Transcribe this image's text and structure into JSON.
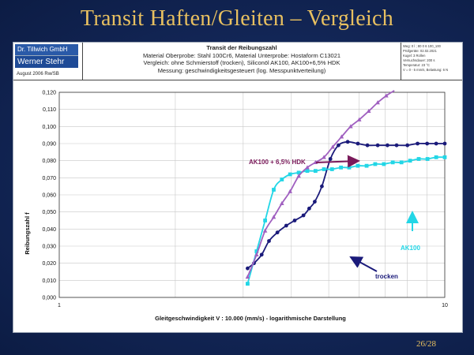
{
  "slide": {
    "title": "Transit Haften/Gleiten – Vergleich",
    "page": "26/28"
  },
  "header": {
    "logo_line1": "Dr. Tillwich GmbH",
    "logo_line2": "Werner Stehr",
    "date": "August 2006 Rw/SB",
    "title": "Transit der Reibungszahl",
    "line1": "Material Oberprobe: Stahl 100Cr6, Material Unterprobe: Hostaform C13021",
    "line2": "Vergleich: ohne Schmierstoff (trocken), Siliconöl AK100, AK100+6,5% HDK",
    "line3": "Messung: geschwindigkeitsgesteuert (log. Messpunktverteilung)",
    "right_lines": [
      "Weg: 0 l ; 80 0 6 100_100",
      "Prüfgeräte: 02.02.2021",
      "Kugel: 3 Rollen",
      "Versuchsdauer: 200 s",
      "Temperatur: 23 °C",
      "V = 0 - 5 mm/s, Belastung: 6 N"
    ]
  },
  "chart_data": {
    "type": "line",
    "xscale": "log",
    "xlim": [
      1,
      10
    ],
    "ylim": [
      0,
      0.12
    ],
    "yticks": [
      "0,000",
      "0,010",
      "0,020",
      "0,030",
      "0,040",
      "0,050",
      "0,060",
      "0,070",
      "0,080",
      "0,090",
      "0,100",
      "0,110",
      "0,120"
    ],
    "xticks": [
      "1",
      "10"
    ],
    "xlabel": "Gleitgeschwindigkeit V : 10.000 (mm/s) - logarithmische Darstellung",
    "ylabel": "Reibungszahl f",
    "grid": true,
    "series": [
      {
        "name": "trocken",
        "color": "#1a1a7a",
        "marker": "circle",
        "x": [
          3.08,
          3.2,
          3.35,
          3.5,
          3.68,
          3.88,
          4.08,
          4.3,
          4.45,
          4.6,
          4.8,
          5.05,
          5.3,
          5.6,
          5.95,
          6.3,
          6.7,
          7.1,
          7.5,
          8.0,
          8.5,
          9.0,
          9.5,
          10.0
        ],
        "y": [
          0.017,
          0.02,
          0.025,
          0.033,
          0.038,
          0.042,
          0.045,
          0.048,
          0.052,
          0.056,
          0.065,
          0.081,
          0.089,
          0.091,
          0.09,
          0.089,
          0.089,
          0.089,
          0.089,
          0.089,
          0.09,
          0.09,
          0.09,
          0.09
        ]
      },
      {
        "name": "AK100",
        "color": "#22d6e6",
        "marker": "square",
        "x": [
          3.08,
          3.25,
          3.42,
          3.6,
          3.78,
          3.97,
          4.18,
          4.4,
          4.62,
          4.86,
          5.1,
          5.38,
          5.65,
          5.95,
          6.27,
          6.6,
          6.95,
          7.33,
          7.72,
          8.13,
          8.56,
          9.02,
          9.5,
          10.0
        ],
        "y": [
          0.008,
          0.027,
          0.045,
          0.063,
          0.069,
          0.072,
          0.073,
          0.074,
          0.074,
          0.075,
          0.075,
          0.076,
          0.076,
          0.077,
          0.077,
          0.078,
          0.078,
          0.079,
          0.079,
          0.08,
          0.081,
          0.081,
          0.082,
          0.082
        ]
      },
      {
        "name": "AK100 + 6,5% HDK",
        "color": "#a060c0",
        "marker": "triangle",
        "x": [
          3.08,
          3.25,
          3.42,
          3.6,
          3.78,
          3.97,
          4.18,
          4.4,
          4.62,
          4.86,
          5.12,
          5.4,
          5.7,
          6.0,
          6.35,
          6.7,
          7.05,
          7.4
        ],
        "y": [
          0.012,
          0.025,
          0.039,
          0.047,
          0.055,
          0.062,
          0.071,
          0.076,
          0.079,
          0.082,
          0.088,
          0.094,
          0.1,
          0.104,
          0.109,
          0.114,
          0.118,
          0.121
        ]
      }
    ],
    "annotations": [
      {
        "text": "AK100 + 6,5% HDK",
        "color": "#7a1a5a"
      },
      {
        "text": "AK100",
        "color": "#22d6e6"
      },
      {
        "text": "trocken",
        "color": "#1a1a7a"
      }
    ]
  }
}
